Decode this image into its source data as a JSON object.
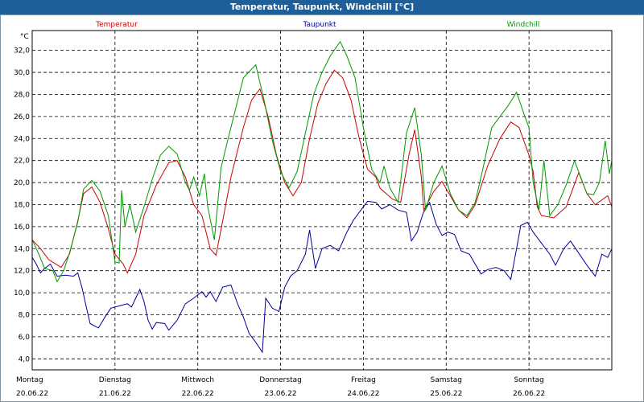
{
  "window": {
    "title": "Temperatur, Taupunkt, Windchill [°C]"
  },
  "chart_data": {
    "type": "line",
    "unit_label": "°C",
    "ylim": [
      3.0,
      33.8
    ],
    "yticks": [
      4.0,
      6.0,
      8.0,
      10.0,
      12.0,
      14.0,
      16.0,
      18.0,
      20.0,
      22.0,
      24.0,
      26.0,
      28.0,
      30.0,
      32.0
    ],
    "ytick_labels": [
      "4,0",
      "6,0",
      "8,0",
      "10,0",
      "12,0",
      "14,0",
      "16,0",
      "18,0",
      "20,0",
      "22,0",
      "24,0",
      "26,0",
      "28,0",
      "30,0",
      "32,0"
    ],
    "xlim": [
      0,
      7
    ],
    "grid": true,
    "days": [
      {
        "name": "Montag",
        "date": "20.06.22"
      },
      {
        "name": "Dienstag",
        "date": "21.06.22"
      },
      {
        "name": "Mittwoch",
        "date": "22.06.22"
      },
      {
        "name": "Donnerstag",
        "date": "23.06.22"
      },
      {
        "name": "Freitag",
        "date": "24.06.22"
      },
      {
        "name": "Samstag",
        "date": "25.06.22"
      },
      {
        "name": "Sonntag",
        "date": "26.06.22"
      }
    ],
    "series": [
      {
        "name": "Temperatur",
        "color": "#cc0000",
        "points": [
          [
            0,
            14.8
          ],
          [
            0.1,
            14.0
          ],
          [
            0.2,
            13.0
          ],
          [
            0.35,
            12.3
          ],
          [
            0.45,
            13.5
          ],
          [
            0.55,
            16.5
          ],
          [
            0.62,
            19.0
          ],
          [
            0.72,
            19.6
          ],
          [
            0.82,
            18.2
          ],
          [
            0.92,
            15.8
          ],
          [
            1.0,
            13.5
          ],
          [
            1.1,
            12.6
          ],
          [
            1.15,
            11.8
          ],
          [
            1.25,
            13.5
          ],
          [
            1.35,
            17.0
          ],
          [
            1.5,
            19.8
          ],
          [
            1.65,
            21.8
          ],
          [
            1.75,
            22.0
          ],
          [
            1.85,
            20.5
          ],
          [
            1.95,
            18.0
          ],
          [
            2.05,
            17.0
          ],
          [
            2.15,
            14.0
          ],
          [
            2.22,
            13.4
          ],
          [
            2.3,
            16.5
          ],
          [
            2.4,
            20.5
          ],
          [
            2.55,
            25.0
          ],
          [
            2.65,
            27.5
          ],
          [
            2.75,
            28.5
          ],
          [
            2.85,
            26.0
          ],
          [
            2.95,
            22.5
          ],
          [
            3.05,
            20.0
          ],
          [
            3.15,
            18.8
          ],
          [
            3.25,
            20.0
          ],
          [
            3.35,
            24.0
          ],
          [
            3.45,
            27.2
          ],
          [
            3.55,
            29.0
          ],
          [
            3.65,
            30.2
          ],
          [
            3.75,
            29.5
          ],
          [
            3.85,
            27.5
          ],
          [
            3.95,
            24.0
          ],
          [
            4.05,
            21.2
          ],
          [
            4.15,
            20.5
          ],
          [
            4.2,
            19.5
          ],
          [
            4.35,
            18.5
          ],
          [
            4.45,
            18.2
          ],
          [
            4.55,
            22.5
          ],
          [
            4.62,
            24.8
          ],
          [
            4.7,
            20.5
          ],
          [
            4.73,
            17.5
          ],
          [
            4.85,
            19.2
          ],
          [
            4.95,
            20.1
          ],
          [
            5.05,
            18.8
          ],
          [
            5.15,
            17.5
          ],
          [
            5.25,
            16.8
          ],
          [
            5.35,
            18.0
          ],
          [
            5.5,
            21.5
          ],
          [
            5.65,
            24.0
          ],
          [
            5.78,
            25.5
          ],
          [
            5.88,
            25.0
          ],
          [
            6.0,
            22.5
          ],
          [
            6.05,
            21.0
          ],
          [
            6.1,
            17.8
          ],
          [
            6.15,
            17.0
          ],
          [
            6.3,
            16.8
          ],
          [
            6.45,
            17.8
          ],
          [
            6.6,
            20.9
          ],
          [
            6.7,
            19.0
          ],
          [
            6.8,
            18.0
          ],
          [
            6.95,
            18.8
          ],
          [
            7.0,
            17.8
          ]
        ]
      },
      {
        "name": "Taupunkt",
        "color": "#000099",
        "points": [
          [
            0,
            13.2
          ],
          [
            0.05,
            12.6
          ],
          [
            0.1,
            11.8
          ],
          [
            0.15,
            12.2
          ],
          [
            0.22,
            12.6
          ],
          [
            0.3,
            11.5
          ],
          [
            0.4,
            11.6
          ],
          [
            0.5,
            11.5
          ],
          [
            0.55,
            11.8
          ],
          [
            0.6,
            10.5
          ],
          [
            0.65,
            8.8
          ],
          [
            0.7,
            7.2
          ],
          [
            0.8,
            6.8
          ],
          [
            0.88,
            7.8
          ],
          [
            0.95,
            8.6
          ],
          [
            1.05,
            8.8
          ],
          [
            1.15,
            9.0
          ],
          [
            1.2,
            8.7
          ],
          [
            1.3,
            10.3
          ],
          [
            1.35,
            9.2
          ],
          [
            1.4,
            7.5
          ],
          [
            1.45,
            6.7
          ],
          [
            1.5,
            7.3
          ],
          [
            1.6,
            7.2
          ],
          [
            1.65,
            6.6
          ],
          [
            1.75,
            7.5
          ],
          [
            1.85,
            9.0
          ],
          [
            1.95,
            9.5
          ],
          [
            2.05,
            10.1
          ],
          [
            2.1,
            9.6
          ],
          [
            2.15,
            10.1
          ],
          [
            2.22,
            9.2
          ],
          [
            2.3,
            10.5
          ],
          [
            2.4,
            10.7
          ],
          [
            2.48,
            9.0
          ],
          [
            2.55,
            7.8
          ],
          [
            2.62,
            6.3
          ],
          [
            2.7,
            5.5
          ],
          [
            2.78,
            4.6
          ],
          [
            2.82,
            9.5
          ],
          [
            2.9,
            8.6
          ],
          [
            2.98,
            8.3
          ],
          [
            3.05,
            10.5
          ],
          [
            3.12,
            11.5
          ],
          [
            3.2,
            12.0
          ],
          [
            3.3,
            13.5
          ],
          [
            3.35,
            15.7
          ],
          [
            3.42,
            12.2
          ],
          [
            3.5,
            14.0
          ],
          [
            3.6,
            14.3
          ],
          [
            3.7,
            13.8
          ],
          [
            3.8,
            15.5
          ],
          [
            3.88,
            16.6
          ],
          [
            3.95,
            17.3
          ],
          [
            4.05,
            18.3
          ],
          [
            4.15,
            18.2
          ],
          [
            4.22,
            17.6
          ],
          [
            4.32,
            18.0
          ],
          [
            4.42,
            17.5
          ],
          [
            4.52,
            17.3
          ],
          [
            4.58,
            14.7
          ],
          [
            4.65,
            15.5
          ],
          [
            4.72,
            17.2
          ],
          [
            4.8,
            18.2
          ],
          [
            4.88,
            16.2
          ],
          [
            4.95,
            15.2
          ],
          [
            5.02,
            15.5
          ],
          [
            5.1,
            15.3
          ],
          [
            5.18,
            13.8
          ],
          [
            5.28,
            13.5
          ],
          [
            5.35,
            12.6
          ],
          [
            5.42,
            11.7
          ],
          [
            5.5,
            12.1
          ],
          [
            5.6,
            12.3
          ],
          [
            5.7,
            12.0
          ],
          [
            5.78,
            11.2
          ],
          [
            5.85,
            14.0
          ],
          [
            5.9,
            16.1
          ],
          [
            5.98,
            16.4
          ],
          [
            6.05,
            15.5
          ],
          [
            6.15,
            14.5
          ],
          [
            6.25,
            13.5
          ],
          [
            6.32,
            12.5
          ],
          [
            6.42,
            14.0
          ],
          [
            6.5,
            14.7
          ],
          [
            6.6,
            13.6
          ],
          [
            6.7,
            12.5
          ],
          [
            6.8,
            11.5
          ],
          [
            6.88,
            13.5
          ],
          [
            6.95,
            13.2
          ],
          [
            7.0,
            14.0
          ]
        ]
      },
      {
        "name": "Windchill",
        "color": "#009900",
        "points": [
          [
            0,
            14.8
          ],
          [
            0.08,
            13.5
          ],
          [
            0.15,
            12.2
          ],
          [
            0.25,
            12.0
          ],
          [
            0.3,
            11.0
          ],
          [
            0.38,
            12.0
          ],
          [
            0.45,
            13.6
          ],
          [
            0.55,
            16.4
          ],
          [
            0.62,
            19.4
          ],
          [
            0.72,
            20.2
          ],
          [
            0.82,
            19.2
          ],
          [
            0.92,
            17.0
          ],
          [
            1.0,
            12.8
          ],
          [
            1.05,
            12.7
          ],
          [
            1.08,
            19.3
          ],
          [
            1.12,
            16.0
          ],
          [
            1.18,
            18.0
          ],
          [
            1.25,
            15.5
          ],
          [
            1.35,
            17.8
          ],
          [
            1.45,
            20.3
          ],
          [
            1.55,
            22.5
          ],
          [
            1.65,
            23.3
          ],
          [
            1.75,
            22.6
          ],
          [
            1.85,
            20.0
          ],
          [
            1.9,
            19.3
          ],
          [
            1.95,
            20.5
          ],
          [
            2.02,
            18.8
          ],
          [
            2.08,
            20.8
          ],
          [
            2.12,
            17.8
          ],
          [
            2.2,
            14.8
          ],
          [
            2.28,
            21.3
          ],
          [
            2.35,
            23.5
          ],
          [
            2.45,
            26.5
          ],
          [
            2.55,
            29.5
          ],
          [
            2.7,
            30.7
          ],
          [
            2.8,
            27.5
          ],
          [
            2.9,
            23.8
          ],
          [
            3.0,
            21.0
          ],
          [
            3.1,
            19.5
          ],
          [
            3.2,
            21.0
          ],
          [
            3.3,
            24.5
          ],
          [
            3.4,
            28.0
          ],
          [
            3.5,
            30.0
          ],
          [
            3.6,
            31.5
          ],
          [
            3.72,
            32.8
          ],
          [
            3.8,
            31.5
          ],
          [
            3.9,
            29.5
          ],
          [
            4.0,
            25.0
          ],
          [
            4.1,
            21.2
          ],
          [
            4.2,
            20.0
          ],
          [
            4.25,
            21.5
          ],
          [
            4.32,
            19.5
          ],
          [
            4.42,
            18.2
          ],
          [
            4.52,
            24.5
          ],
          [
            4.62,
            26.8
          ],
          [
            4.7,
            22.5
          ],
          [
            4.75,
            17.5
          ],
          [
            4.85,
            20.0
          ],
          [
            4.95,
            21.5
          ],
          [
            5.05,
            19.0
          ],
          [
            5.15,
            17.5
          ],
          [
            5.25,
            17.0
          ],
          [
            5.35,
            18.2
          ],
          [
            5.45,
            21.5
          ],
          [
            5.55,
            25.0
          ],
          [
            5.65,
            26.0
          ],
          [
            5.75,
            27.0
          ],
          [
            5.85,
            28.2
          ],
          [
            5.95,
            26.0
          ],
          [
            6.0,
            25.0
          ],
          [
            6.05,
            20.0
          ],
          [
            6.12,
            17.5
          ],
          [
            6.18,
            22.0
          ],
          [
            6.25,
            17.0
          ],
          [
            6.35,
            18.0
          ],
          [
            6.45,
            19.8
          ],
          [
            6.55,
            22.0
          ],
          [
            6.62,
            20.6
          ],
          [
            6.7,
            19.0
          ],
          [
            6.78,
            18.9
          ],
          [
            6.85,
            20.0
          ],
          [
            6.92,
            23.8
          ],
          [
            6.97,
            20.8
          ],
          [
            7.0,
            22.0
          ]
        ]
      }
    ]
  }
}
